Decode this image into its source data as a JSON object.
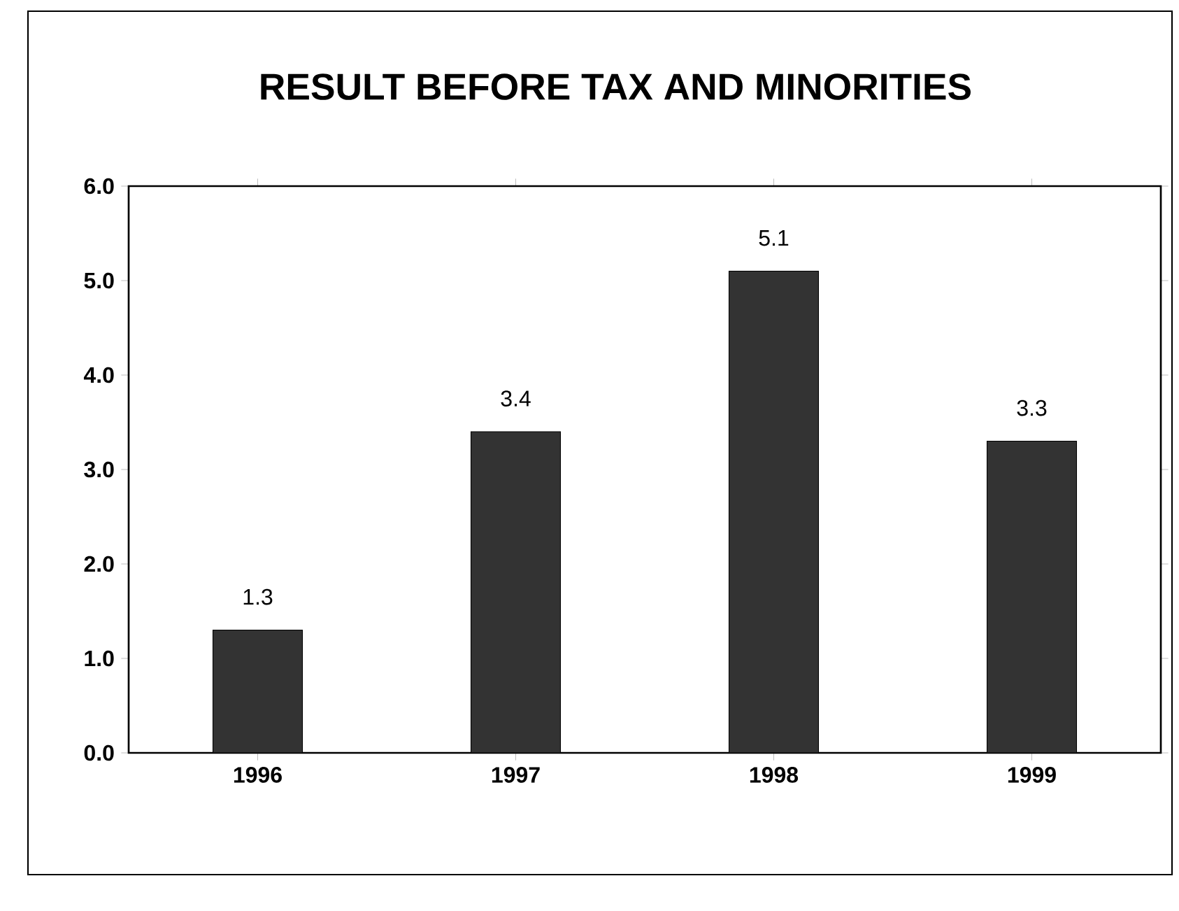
{
  "chart_data": {
    "type": "bar",
    "title": "RESULT BEFORE TAX AND MINORITIES",
    "categories": [
      "1996",
      "1997",
      "1998",
      "1999"
    ],
    "values": [
      1.3,
      3.4,
      5.1,
      3.3
    ],
    "color": "#333333",
    "ylim": [
      0,
      6
    ],
    "yticks": [
      {
        "value": 0,
        "label": "0.0"
      },
      {
        "value": 1,
        "label": "1.0"
      },
      {
        "value": 2,
        "label": "2.0"
      },
      {
        "value": 3,
        "label": "3.0"
      },
      {
        "value": 4,
        "label": "4.0"
      },
      {
        "value": 5,
        "label": "5.0"
      },
      {
        "value": 6,
        "label": "6.0"
      }
    ],
    "data_labels": true
  }
}
